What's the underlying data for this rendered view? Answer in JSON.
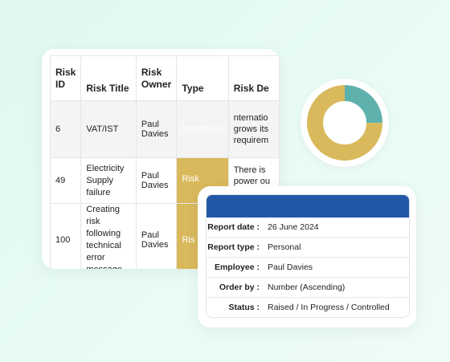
{
  "risk_table": {
    "headers": {
      "id": [
        "Risk",
        "ID"
      ],
      "title": "Risk Title",
      "owner": [
        "Risk",
        "Owner"
      ],
      "type": "Type",
      "desc": "Risk De"
    },
    "rows": [
      {
        "id": "6",
        "title": [
          "VAT/IST"
        ],
        "owner": [
          "Paul",
          "Davies"
        ],
        "type": "Opportunity",
        "desc": [
          "nternatio",
          "grows its",
          "requirem"
        ]
      },
      {
        "id": "49",
        "title": [
          "Electricity",
          "Supply failure"
        ],
        "owner": [
          "Paul",
          "Davies"
        ],
        "type": "Risk",
        "desc": [
          "There is",
          "power ou"
        ]
      },
      {
        "id": "100",
        "title": [
          "Creating risk",
          "following",
          "technical error",
          "message"
        ],
        "owner": [
          "Paul",
          "Davies"
        ],
        "type": "Ris",
        "desc": []
      }
    ],
    "type_colors": {
      "opportunity": "#5fb1ac",
      "risk": "#d9b95c"
    }
  },
  "donut": {
    "segments": [
      {
        "fraction": 0.25,
        "color": "#5fb1ac"
      },
      {
        "fraction": 0.75,
        "color": "#d9b95c"
      }
    ]
  },
  "report": {
    "header_color": "#2358a7",
    "rows": [
      {
        "label": "Report date :",
        "value": "26 June 2024"
      },
      {
        "label": "Report type :",
        "value": "Personal"
      },
      {
        "label": "Employee :",
        "value": "Paul Davies"
      },
      {
        "label": "Order by :",
        "value": "Number (Ascending)"
      },
      {
        "label": "Status :",
        "value": "Raised / In Progress / Controlled"
      }
    ]
  }
}
